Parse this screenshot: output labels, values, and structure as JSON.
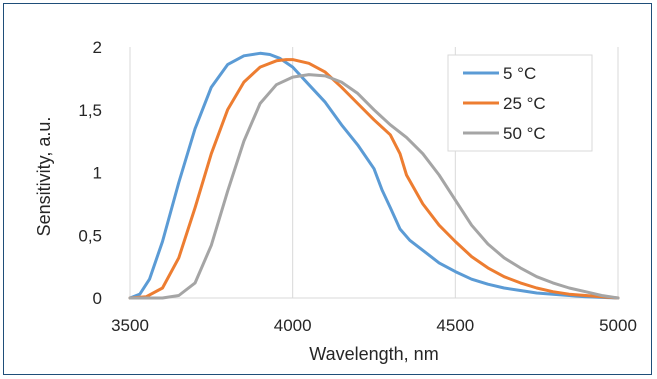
{
  "chart_data": {
    "type": "line",
    "title": "",
    "xlabel": "Wavelength, nm",
    "ylabel": "Sensitivity, a.u.",
    "xlim": [
      3500,
      5000
    ],
    "ylim": [
      0,
      2
    ],
    "xticks": [
      3500,
      4000,
      4500,
      5000
    ],
    "xtick_labels": [
      "3500",
      "4000",
      "4500",
      "5000"
    ],
    "yticks": [
      0,
      0.5,
      1,
      1.5,
      2
    ],
    "ytick_labels": [
      "0",
      "0,5",
      "1",
      "1,5",
      "2"
    ],
    "grid": "vertical",
    "legend_position": "top-right",
    "series": [
      {
        "name": "5 °C",
        "color": "#5b9bd5",
        "x": [
          3500,
          3530,
          3560,
          3600,
          3650,
          3700,
          3750,
          3800,
          3850,
          3900,
          3930,
          3960,
          4000,
          4050,
          4100,
          4150,
          4200,
          4250,
          4275,
          4300,
          4330,
          4360,
          4400,
          4450,
          4500,
          4550,
          4600,
          4650,
          4700,
          4750,
          4800,
          4850,
          4900,
          4950,
          5000
        ],
        "y": [
          0.0,
          0.03,
          0.15,
          0.45,
          0.92,
          1.35,
          1.68,
          1.86,
          1.93,
          1.95,
          1.94,
          1.91,
          1.84,
          1.7,
          1.56,
          1.38,
          1.22,
          1.03,
          0.86,
          0.72,
          0.55,
          0.46,
          0.38,
          0.28,
          0.21,
          0.15,
          0.11,
          0.08,
          0.06,
          0.04,
          0.03,
          0.02,
          0.01,
          0.005,
          0.0
        ]
      },
      {
        "name": "25 °C",
        "color": "#ed7d31",
        "x": [
          3500,
          3550,
          3600,
          3650,
          3700,
          3750,
          3800,
          3850,
          3900,
          3950,
          3980,
          4000,
          4050,
          4100,
          4150,
          4200,
          4250,
          4300,
          4330,
          4350,
          4400,
          4450,
          4500,
          4550,
          4600,
          4650,
          4700,
          4750,
          4800,
          4850,
          4900,
          4950,
          5000
        ],
        "y": [
          0.0,
          0.01,
          0.08,
          0.32,
          0.72,
          1.15,
          1.5,
          1.72,
          1.84,
          1.89,
          1.9,
          1.9,
          1.87,
          1.8,
          1.68,
          1.55,
          1.42,
          1.3,
          1.15,
          0.98,
          0.75,
          0.58,
          0.45,
          0.33,
          0.24,
          0.17,
          0.12,
          0.08,
          0.05,
          0.03,
          0.02,
          0.01,
          0.0
        ]
      },
      {
        "name": "50 °C",
        "color": "#a5a5a5",
        "x": [
          3500,
          3600,
          3650,
          3700,
          3750,
          3800,
          3850,
          3900,
          3950,
          4000,
          4050,
          4100,
          4150,
          4200,
          4250,
          4300,
          4350,
          4400,
          4450,
          4500,
          4550,
          4600,
          4650,
          4700,
          4750,
          4800,
          4850,
          4900,
          4950,
          5000
        ],
        "y": [
          0.0,
          0.0,
          0.02,
          0.12,
          0.42,
          0.85,
          1.25,
          1.55,
          1.7,
          1.76,
          1.78,
          1.77,
          1.72,
          1.63,
          1.5,
          1.38,
          1.28,
          1.15,
          0.98,
          0.78,
          0.58,
          0.43,
          0.32,
          0.24,
          0.17,
          0.12,
          0.08,
          0.05,
          0.02,
          0.0
        ]
      }
    ]
  }
}
